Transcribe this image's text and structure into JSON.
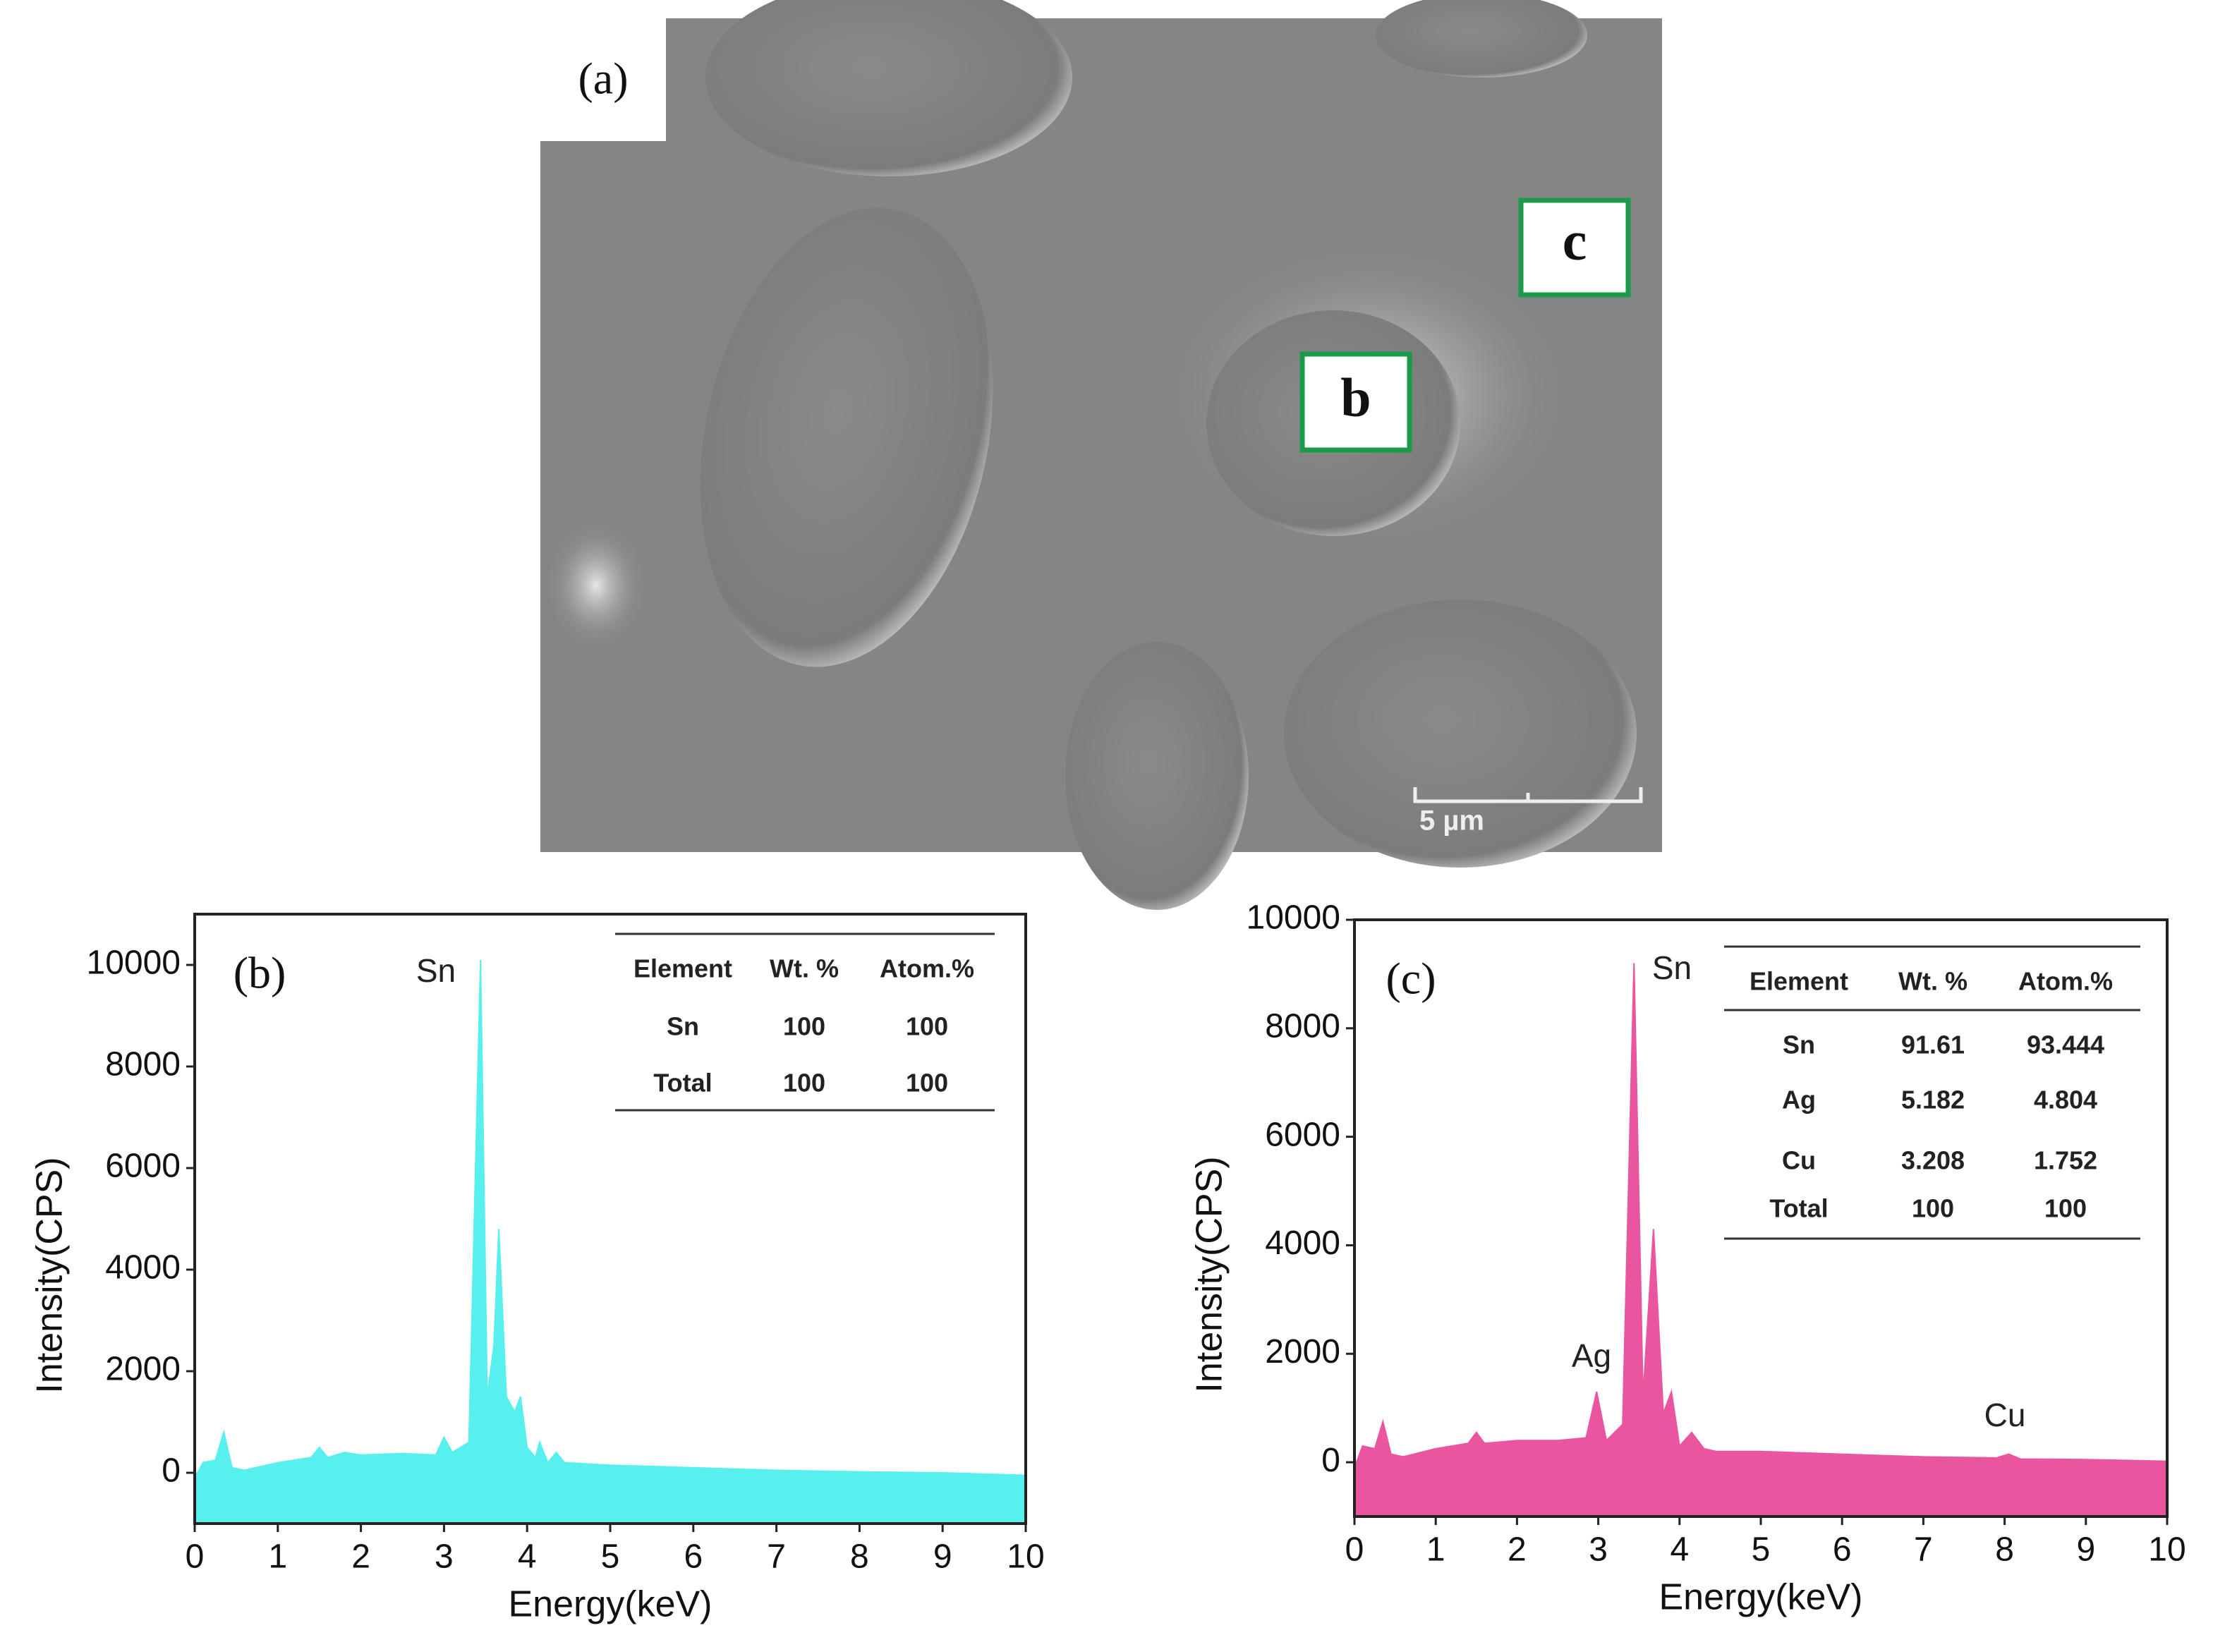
{
  "panel_a": {
    "label": "(a)",
    "markers": [
      "b",
      "c"
    ],
    "scale_bar": "5 µm"
  },
  "chart_data": [
    {
      "type": "area",
      "panel_label": "(b)",
      "x_label": "Energy(keV)",
      "y_label": "Intensity(CPS)",
      "x": [
        0,
        0.1,
        0.25,
        0.35,
        0.45,
        0.6,
        1,
        1.4,
        1.5,
        1.6,
        1.8,
        2,
        2.5,
        2.9,
        3,
        3.1,
        3.3,
        3.44,
        3.52,
        3.6,
        3.66,
        3.75,
        3.85,
        3.92,
        4,
        4.1,
        4.15,
        4.25,
        4.35,
        4.45,
        5,
        6,
        7,
        8,
        9,
        10
      ],
      "values": [
        -100,
        200,
        250,
        800,
        100,
        50,
        200,
        300,
        500,
        300,
        400,
        350,
        380,
        350,
        700,
        400,
        600,
        10100,
        1500,
        2500,
        4800,
        1500,
        1200,
        1500,
        500,
        300,
        600,
        200,
        400,
        200,
        150,
        100,
        50,
        20,
        0,
        -50
      ],
      "color": "#58f0ee",
      "xlim": [
        0,
        10
      ],
      "xticks": [
        0,
        1,
        2,
        3,
        4,
        5,
        6,
        7,
        8,
        9,
        10
      ],
      "ylim": [
        -1000,
        11000
      ],
      "yticks": [
        0,
        2000,
        4000,
        6000,
        8000,
        10000
      ],
      "annotations": [
        "Sn"
      ],
      "table": {
        "columns": [
          "Element",
          "Wt. %",
          "Atom.%"
        ],
        "rows": [
          [
            "Sn",
            "100",
            "100"
          ],
          [
            "Total",
            "100",
            "100"
          ]
        ]
      }
    },
    {
      "type": "area",
      "panel_label": "(c)",
      "x_label": "Energy(keV)",
      "y_label": "Intensity(CPS)",
      "x": [
        0,
        0.1,
        0.25,
        0.35,
        0.45,
        0.6,
        1,
        1.4,
        1.5,
        1.6,
        2,
        2.5,
        2.85,
        2.98,
        3.1,
        3.3,
        3.44,
        3.55,
        3.68,
        3.8,
        3.9,
        4,
        4.15,
        4.3,
        4.45,
        5,
        6,
        7,
        7.9,
        8.05,
        8.2,
        9,
        10
      ],
      "values": [
        -100,
        300,
        250,
        750,
        150,
        100,
        250,
        350,
        550,
        350,
        400,
        400,
        450,
        1300,
        400,
        700,
        9200,
        1200,
        4300,
        900,
        1300,
        300,
        550,
        250,
        200,
        200,
        150,
        100,
        80,
        150,
        60,
        50,
        20
      ],
      "color": "#e9569f",
      "xlim": [
        0,
        10
      ],
      "xticks": [
        0,
        1,
        2,
        3,
        4,
        5,
        6,
        7,
        8,
        9,
        10
      ],
      "ylim": [
        -1000,
        10000
      ],
      "yticks": [
        0,
        2000,
        4000,
        6000,
        8000,
        10000
      ],
      "annotations": [
        "Sn",
        "Ag",
        "Cu"
      ],
      "table": {
        "columns": [
          "Element",
          "Wt. %",
          "Atom.%"
        ],
        "rows": [
          [
            "Sn",
            "91.61",
            "93.444"
          ],
          [
            "Ag",
            "5.182",
            "4.804"
          ],
          [
            "Cu",
            "3.208",
            "1.752"
          ],
          [
            "Total",
            "100",
            "100"
          ]
        ]
      }
    }
  ]
}
